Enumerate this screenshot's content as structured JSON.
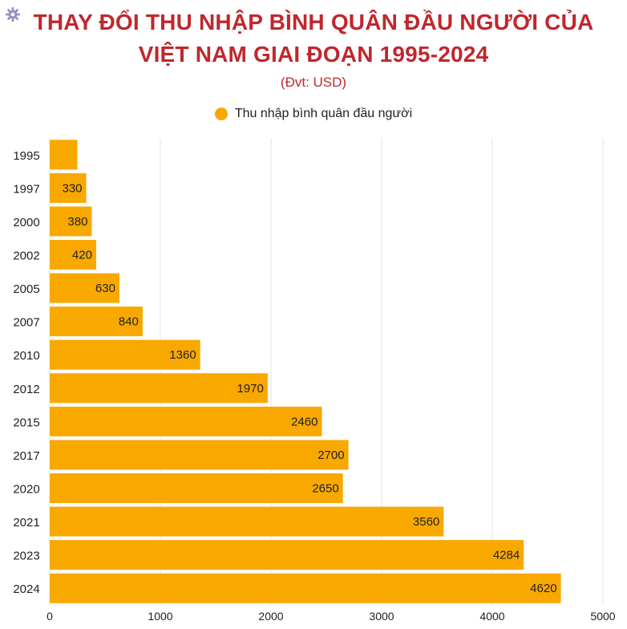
{
  "header": {
    "title_line1": "THAY ĐỔI THU NHẬP BÌNH QUÂN ĐẦU NGƯỜI CỦA",
    "title_line2": "VIỆT NAM GIAI ĐOẠN 1995-2024",
    "unit": "(Đvt: USD)"
  },
  "colors": {
    "title": "#c0272d",
    "bar": "#f9a800",
    "grid": "#e6e6e6"
  },
  "icons": {
    "corner": "gear-icon"
  },
  "chart_data": {
    "type": "bar",
    "orientation": "horizontal",
    "title": "THAY ĐỔI THU NHẬP BÌNH QUÂN ĐẦU NGƯỜI CỦA VIỆT NAM GIAI ĐOẠN 1995-2024",
    "subtitle": "(Đvt: USD)",
    "categories": [
      "1995",
      "1997",
      "2000",
      "2002",
      "2005",
      "2007",
      "2010",
      "2012",
      "2015",
      "2017",
      "2020",
      "2021",
      "2023",
      "2024"
    ],
    "series": [
      {
        "name": "Thu nhập bình quân đầu người",
        "values": [
          250,
          330,
          380,
          420,
          630,
          840,
          1360,
          1970,
          2460,
          2700,
          2650,
          3560,
          4284,
          4620
        ],
        "labels": [
          "",
          "330",
          "380",
          "420",
          "630",
          "840",
          "1360",
          "1970",
          "2460",
          "2700",
          "2650",
          "3560",
          "4284",
          "4620"
        ]
      }
    ],
    "xlim": [
      0,
      5000
    ],
    "xticks": [
      "0",
      "1000",
      "2000",
      "3000",
      "4000",
      "5000"
    ],
    "grid": true,
    "legend": "top-center"
  }
}
